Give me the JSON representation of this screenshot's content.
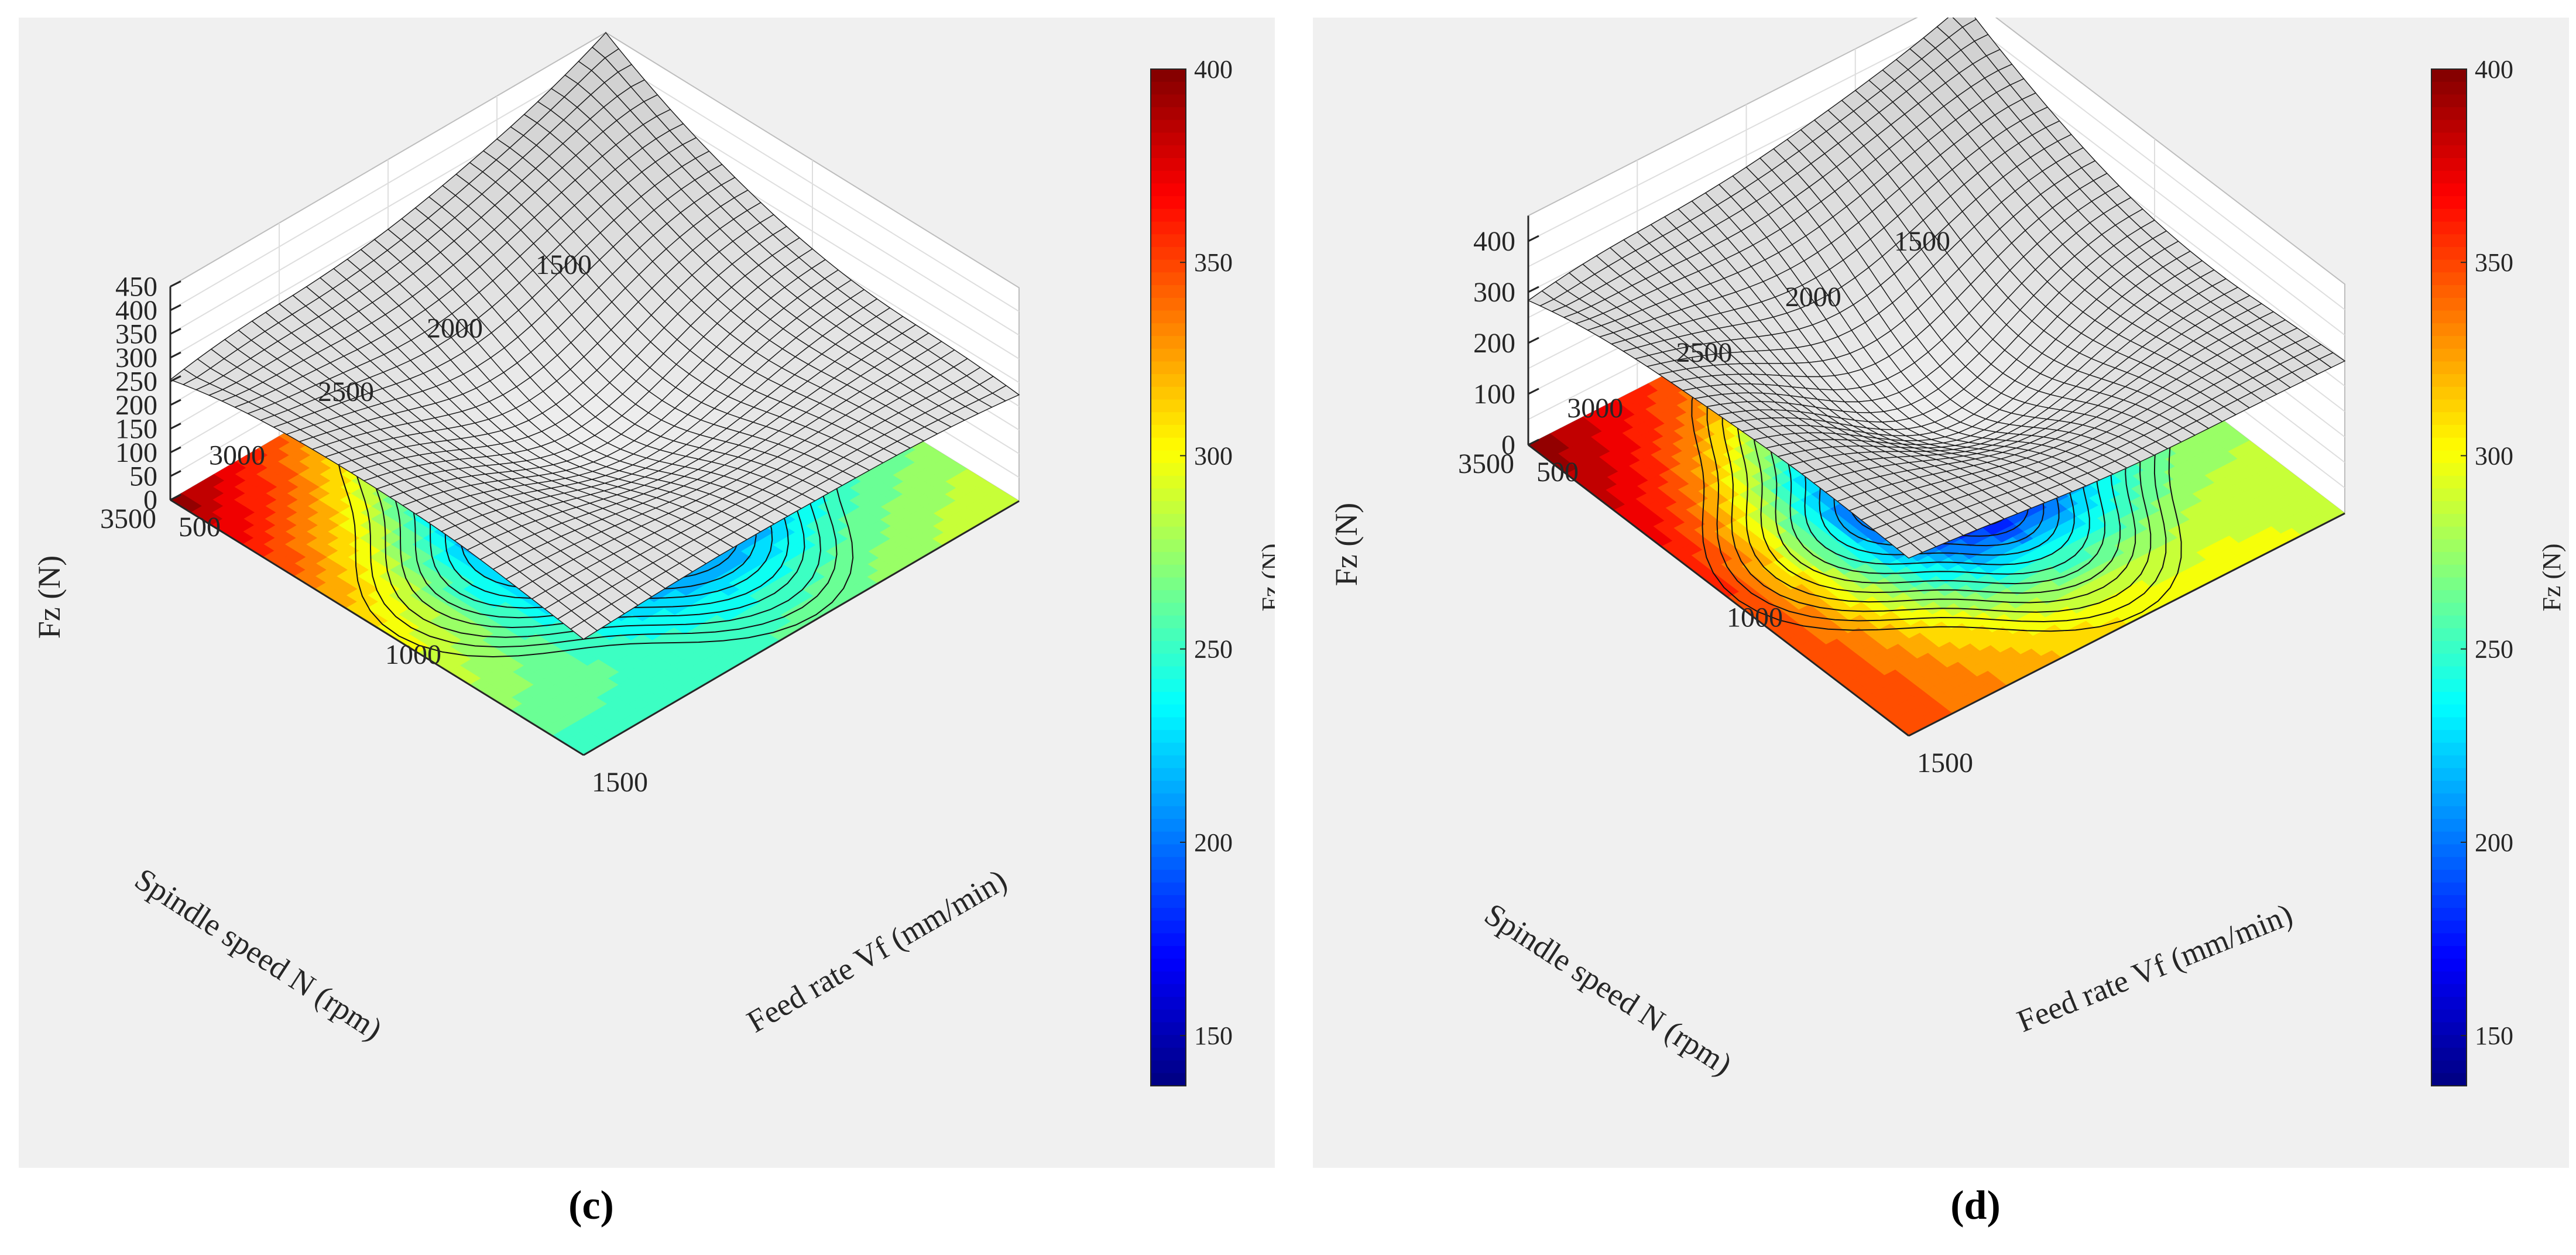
{
  "chart_data": [
    {
      "type": "surface3d",
      "caption": "(c)",
      "zlabel": "Fz (N)",
      "xlabel": "Feed rate Vf (mm/min)",
      "ylabel": "Spindle speed N (rpm)",
      "colorbar_label": "Fz (N)",
      "x_ticks": [
        "500",
        "1000",
        "1500"
      ],
      "y_ticks": [
        "1500",
        "2000",
        "2500",
        "3000",
        "3500"
      ],
      "z_ticks": [
        "0",
        "50",
        "100",
        "150",
        "200",
        "250",
        "300",
        "350",
        "400",
        "450"
      ],
      "colorbar_ticks": [
        "150",
        "200",
        "250",
        "300",
        "350",
        "400"
      ],
      "xlim": [
        500,
        1500
      ],
      "ylim": [
        1500,
        3500
      ],
      "zlim": [
        0,
        450
      ],
      "clim": [
        137,
        400
      ],
      "surface": {
        "min": 137,
        "min_at": [
          1000,
          2500
        ],
        "corners": {
          "v500_n1500": 210,
          "v1500_n1500": 295,
          "v500_n3500": 400,
          "v1500_n3500": 245
        },
        "z_top": 450,
        "z_left": 255,
        "z_right": 225
      }
    },
    {
      "type": "surface3d",
      "caption": "(d)",
      "zlabel": "Fz (N)",
      "xlabel": "Feed rate Vf (mm/min)",
      "ylabel": "Spindle speed N (rpm)",
      "colorbar_label": "Fz (N)",
      "x_ticks": [
        "500",
        "1000",
        "1500"
      ],
      "y_ticks": [
        "1500",
        "2000",
        "2500",
        "3000",
        "3500"
      ],
      "z_ticks": [
        "0",
        "100",
        "200",
        "300",
        "400"
      ],
      "colorbar_ticks": [
        "150",
        "200",
        "250",
        "300",
        "350",
        "400"
      ],
      "xlim": [
        500,
        1500
      ],
      "ylim": [
        1500,
        3500
      ],
      "zlim": [
        0,
        450
      ],
      "clim": [
        137,
        400
      ],
      "surface": {
        "min": 140,
        "min_at": [
          1000,
          2500
        ],
        "corners": {
          "v500_n1500": 275,
          "v1500_n1500": 290,
          "v500_n3500": 400,
          "v1500_n3500": 350
        },
        "z_top": 430,
        "z_left": 285,
        "z_right": 300
      }
    }
  ]
}
